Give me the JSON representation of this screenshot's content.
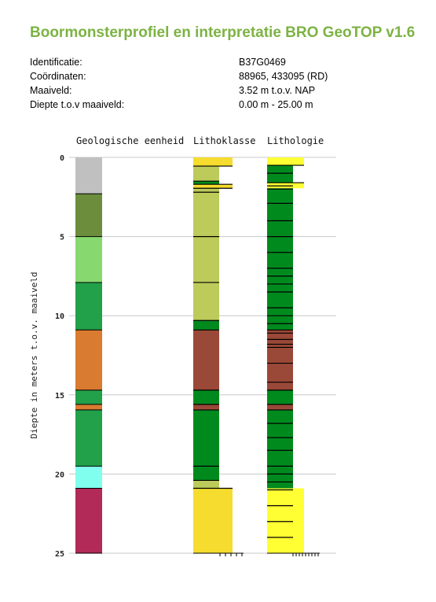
{
  "report": {
    "title": "Boormonsterprofiel en interpretatie BRO GeoTOP v1.6",
    "fields": [
      {
        "label": "Identificatie:",
        "value": "B37G0469"
      },
      {
        "label": "Coördinaten:",
        "value": "88965, 433095 (RD)"
      },
      {
        "label": "Maaiveld:",
        "value": "3.52 m t.o.v. NAP"
      },
      {
        "label": "Diepte t.o.v maaiveld:",
        "value": "0.00 m - 25.00 m"
      }
    ]
  },
  "chart_data": {
    "type": "table",
    "ylabel": "Diepte in meters t.o.v. maaiveld",
    "ylim": [
      0,
      25
    ],
    "yticks": [
      0,
      5,
      10,
      15,
      20,
      25
    ],
    "grid": true,
    "columns": [
      {
        "name": "Geologische eenheid",
        "intervals": [
          {
            "top": 0.0,
            "bottom": 2.3,
            "color": "#c0c0c0"
          },
          {
            "top": 2.3,
            "bottom": 5.0,
            "color": "#6c8e3c"
          },
          {
            "top": 5.0,
            "bottom": 7.9,
            "color": "#88d870"
          },
          {
            "top": 7.9,
            "bottom": 10.9,
            "color": "#22a04a"
          },
          {
            "top": 10.9,
            "bottom": 14.7,
            "color": "#d97b30"
          },
          {
            "top": 14.7,
            "bottom": 15.6,
            "color": "#22a04a"
          },
          {
            "top": 15.6,
            "bottom": 15.95,
            "color": "#d97b30"
          },
          {
            "top": 15.95,
            "bottom": 19.5,
            "color": "#22a04a"
          },
          {
            "top": 19.5,
            "bottom": 20.9,
            "color": "#80ffee"
          },
          {
            "top": 20.9,
            "bottom": 25.0,
            "color": "#b22a58"
          }
        ]
      },
      {
        "name": "Lithoklasse",
        "intervals": [
          {
            "top": 0.0,
            "bottom": 0.55,
            "color": "#f5dc2e",
            "wide": true
          },
          {
            "top": 0.55,
            "bottom": 1.5,
            "color": "#bccb5a"
          },
          {
            "top": 1.5,
            "bottom": 1.7,
            "color": "#008a1e"
          },
          {
            "top": 1.7,
            "bottom": 1.95,
            "color": "#f5dc2e",
            "wide": true
          },
          {
            "top": 1.95,
            "bottom": 10.3,
            "color": "#bccb5a"
          },
          {
            "top": 10.3,
            "bottom": 10.9,
            "color": "#008a1e"
          },
          {
            "top": 10.9,
            "bottom": 14.7,
            "color": "#9a4838"
          },
          {
            "top": 14.7,
            "bottom": 15.6,
            "color": "#008a1e"
          },
          {
            "top": 15.6,
            "bottom": 15.95,
            "color": "#9a4838"
          },
          {
            "top": 15.95,
            "bottom": 20.4,
            "color": "#008a1e"
          },
          {
            "top": 20.4,
            "bottom": 20.9,
            "color": "#bccb5a"
          },
          {
            "top": 20.9,
            "bottom": 25.0,
            "color": "#f5dc2e",
            "wide": true
          }
        ],
        "ticks": [
          0.55,
          1.5,
          1.7,
          1.95,
          2.2,
          5.0,
          7.9,
          10.3,
          10.9,
          14.7,
          15.6,
          15.95,
          19.5,
          20.4,
          20.9
        ]
      },
      {
        "name": "Lithologie",
        "intervals": [
          {
            "top": 0.0,
            "bottom": 0.5,
            "color": "#ffff33",
            "wide": true
          },
          {
            "top": 0.5,
            "bottom": 1.6,
            "color": "#008a1e"
          },
          {
            "top": 1.6,
            "bottom": 1.95,
            "color": "#ffff33",
            "wide": true
          },
          {
            "top": 1.95,
            "bottom": 10.9,
            "color": "#008a1e"
          },
          {
            "top": 10.9,
            "bottom": 14.7,
            "color": "#9a4838"
          },
          {
            "top": 14.7,
            "bottom": 15.6,
            "color": "#008a1e"
          },
          {
            "top": 15.6,
            "bottom": 15.95,
            "color": "#9a4838"
          },
          {
            "top": 15.95,
            "bottom": 20.9,
            "color": "#008a1e"
          },
          {
            "top": 20.9,
            "bottom": 25.0,
            "color": "#ffff33",
            "wide": true
          }
        ],
        "ticks": [
          0.5,
          1.0,
          1.6,
          1.8,
          2.0,
          2.9,
          4.0,
          5.0,
          6.0,
          7.0,
          7.5,
          8.0,
          8.5,
          9.5,
          10.0,
          10.5,
          10.9,
          11.1,
          11.5,
          11.8,
          12.0,
          13.0,
          14.2,
          14.7,
          15.6,
          15.95,
          16.8,
          17.7,
          18.5,
          19.5,
          20.0,
          20.5,
          21.0,
          22.0,
          23.0,
          24.0
        ]
      }
    ],
    "bottom_ticks": {
      "Lithoklasse": 5,
      "Lithologie": 9
    }
  }
}
